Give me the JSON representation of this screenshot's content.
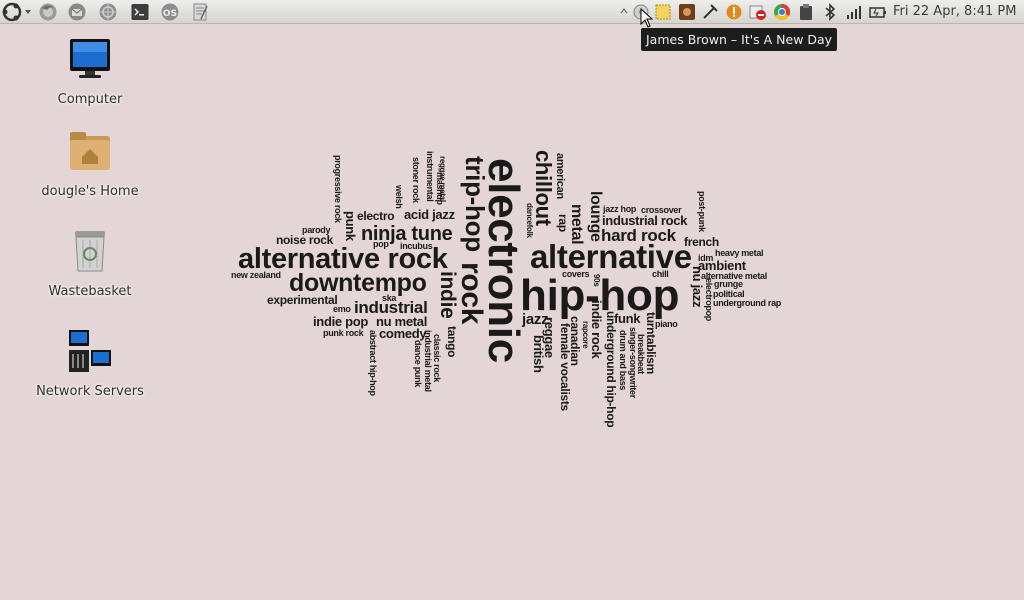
{
  "panel": {
    "clock": "Fri 22 Apr,  8:41 PM"
  },
  "tooltip": {
    "text": "James Brown – It's A New Day"
  },
  "desktop": {
    "icons": [
      {
        "label": "Computer"
      },
      {
        "label": "dougle's Home"
      },
      {
        "label": "Wastebasket"
      },
      {
        "label": "Network Servers"
      }
    ]
  },
  "cloud": {
    "electronic": "electronic",
    "hiphop": "hip-hop",
    "alternative": "alternative",
    "alternative_rock": "alternative rock",
    "downtempo": "downtempo",
    "trip_hop": "trip-hop",
    "rock": "rock",
    "indie": "indie",
    "chillout": "chillout",
    "ninja_tune": "ninja tune",
    "industrial": "industrial",
    "hard_rock": "hard rock",
    "metal": "metal",
    "lounge": "lounge",
    "industrial_rock": "industrial rock",
    "american": "american",
    "rap": "rap",
    "jazz": "jazz",
    "ambient": "ambient",
    "indie_pop": "indie pop",
    "nu_metal": "nu metal",
    "comedy": "comedy",
    "french": "french",
    "funk": "funk",
    "experimental": "experimental",
    "noise_rock": "noise rock",
    "nu_jazz": "nu jazz",
    "tango": "tango",
    "reggae": "reggae",
    "british": "british",
    "canadian": "canadian",
    "female_vocalists": "female vocalists",
    "indie_rock": "indie rock",
    "underground_hiphop": "underground hip-hop",
    "turntablism": "turntablism",
    "electro": "electro",
    "acid_jazz": "acid jazz",
    "punk": "punk",
    "heavy_metal": "heavy metal",
    "alternative_metal": "alternative metal",
    "grunge": "grunge",
    "political": "political",
    "underground_rap": "underground rap",
    "electropop": "electropop",
    "post_punk": "post-punk",
    "jazz_hop": "jazz hop",
    "crossover": "crossover",
    "idm": "idm",
    "chill": "chill",
    "piano": "piano",
    "breakbeat": "breakbeat",
    "singer_songwriter": "singer-songwriter",
    "drum_and_bass": "drum and bass",
    "rapcore": "rapcore",
    "covers": "covers",
    "s90s": "90s",
    "dancefolk": "dancefolk",
    "progressive_rock": "progressive rock",
    "welsh": "welsh",
    "stoner_rock": "stoner rock",
    "instrumental": "instrumental",
    "mashup": "mashup",
    "reggae_metal": "reggae metal",
    "parody": "parody",
    "pop": "pop",
    "incubus": "incubus",
    "new_zealand": "new zealand",
    "ska": "ska",
    "emo": "emo",
    "punk_rock": "punk rock",
    "abstract_hiphop": "abstract hip-hop",
    "classic_rock": "classic rock",
    "industrial_metal": "industrial metal",
    "dance_punk": "dance punk"
  }
}
